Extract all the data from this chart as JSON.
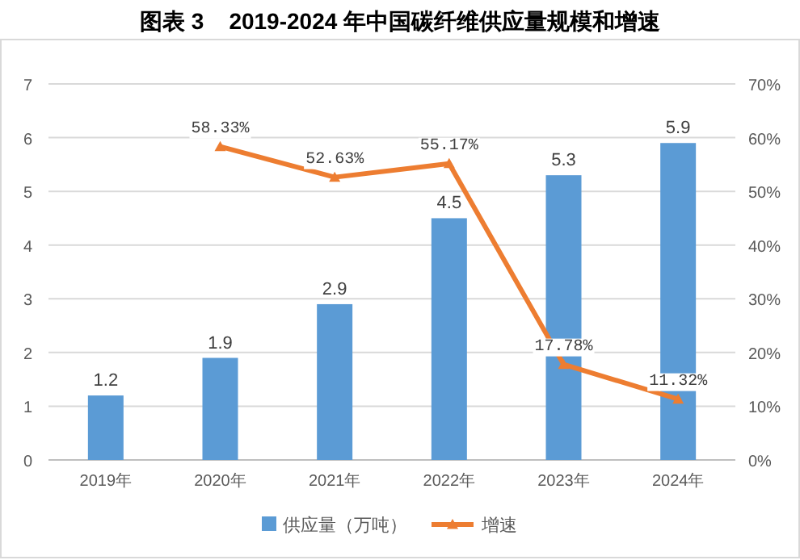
{
  "chart_data": {
    "type": "bar",
    "title": "图表 3    2019-2024 年中国碳纤维供应量规模和增速",
    "categories": [
      "2019年",
      "2020年",
      "2021年",
      "2022年",
      "2023年",
      "2024年"
    ],
    "series": [
      {
        "name": "供应量（万吨）",
        "color": "#5b9bd5",
        "values": [
          1.2,
          1.9,
          2.9,
          4.5,
          5.3,
          5.9
        ],
        "value_labels": [
          "1.2",
          "1.9",
          "2.9",
          "4.5",
          "5.3",
          "5.9"
        ]
      },
      {
        "name": "增速",
        "type": "line",
        "axis": "y2",
        "color": "#ed7d31",
        "marker": "triangle",
        "values": [
          null,
          58.33,
          52.63,
          55.17,
          17.78,
          11.32
        ],
        "value_labels": [
          null,
          "58.33%",
          "52.63%",
          "55.17%",
          "17.78%",
          "11.32%"
        ]
      }
    ],
    "ylim": [
      0,
      7
    ],
    "yticks": [
      0,
      1,
      2,
      3,
      4,
      5,
      6,
      7
    ],
    "y2lim": [
      0,
      70
    ],
    "y2ticks": [
      {
        "value": 0,
        "label": "0%"
      },
      {
        "value": 10,
        "label": "10%"
      },
      {
        "value": 20,
        "label": "20%"
      },
      {
        "value": 30,
        "label": "30%"
      },
      {
        "value": 40,
        "label": "40%"
      },
      {
        "value": 50,
        "label": "50%"
      },
      {
        "value": 60,
        "label": "60%"
      },
      {
        "value": 70,
        "label": "70%"
      }
    ],
    "grid": "y",
    "legend": "bottom"
  }
}
